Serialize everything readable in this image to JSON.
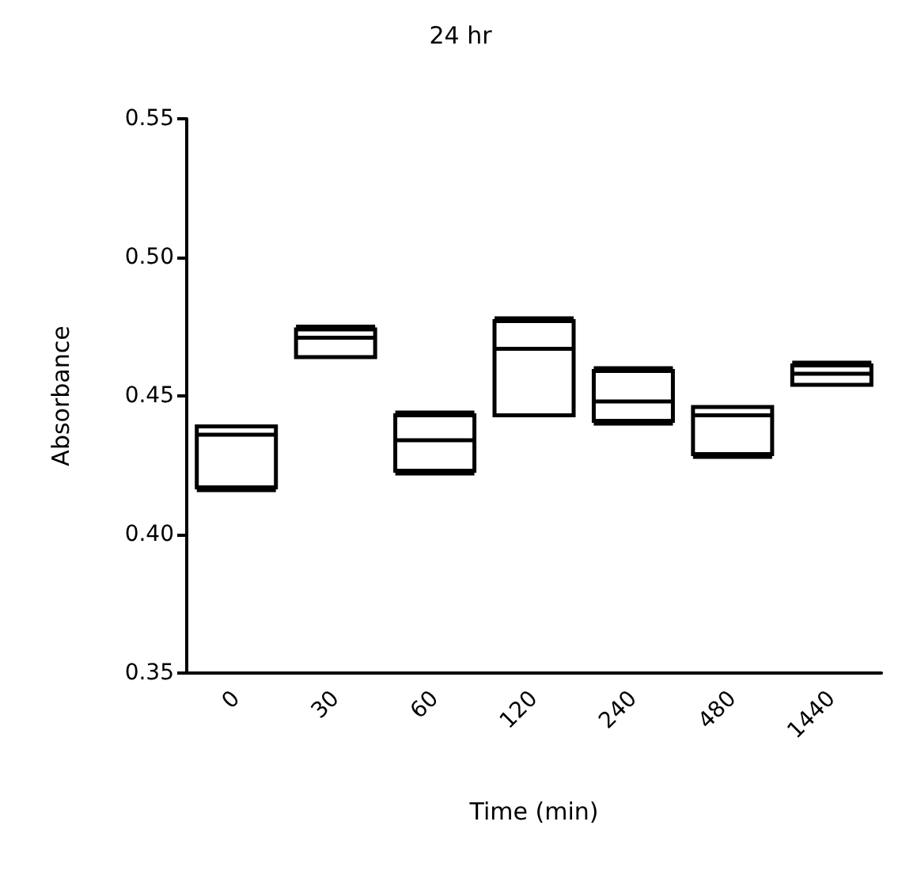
{
  "chart_data": {
    "type": "box",
    "title": "24 hr",
    "xlabel": "Time (min)",
    "ylabel": "Absorbance",
    "categories": [
      "0",
      "30",
      "60",
      "120",
      "240",
      "480",
      "1440"
    ],
    "boxes": [
      {
        "low": 0.416,
        "q1": 0.417,
        "median": 0.436,
        "q3": 0.439,
        "high": 0.439
      },
      {
        "low": 0.464,
        "q1": 0.464,
        "median": 0.471,
        "q3": 0.474,
        "high": 0.475
      },
      {
        "low": 0.422,
        "q1": 0.423,
        "median": 0.434,
        "q3": 0.443,
        "high": 0.444
      },
      {
        "low": 0.443,
        "q1": 0.443,
        "median": 0.467,
        "q3": 0.477,
        "high": 0.478
      },
      {
        "low": 0.44,
        "q1": 0.441,
        "median": 0.448,
        "q3": 0.459,
        "high": 0.46
      },
      {
        "low": 0.428,
        "q1": 0.429,
        "median": 0.443,
        "q3": 0.446,
        "high": 0.446
      },
      {
        "low": 0.454,
        "q1": 0.454,
        "median": 0.458,
        "q3": 0.461,
        "high": 0.462
      }
    ],
    "color": "#000000",
    "ylim": [
      0.35,
      0.55
    ],
    "yticks": [
      0.35,
      {
        "value": 0.4,
        "label": "0.40"
      },
      0.45,
      {
        "value": 0.5,
        "label": "0.50"
      },
      0.55
    ],
    "grid": false
  }
}
